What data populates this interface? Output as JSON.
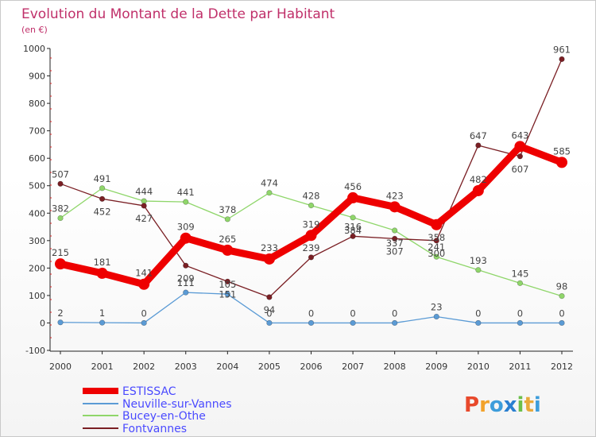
{
  "chart_data": {
    "type": "line",
    "title": "Evolution du Montant de la Dette par Habitant",
    "subtitle": "(en €)",
    "x": [
      "2000",
      "2001",
      "2002",
      "2003",
      "2004",
      "2005",
      "2006",
      "2007",
      "2008",
      "2009",
      "2010",
      "2011",
      "2012"
    ],
    "ylim": [
      -100,
      1000
    ],
    "yticks": [
      -100,
      0,
      100,
      200,
      300,
      400,
      500,
      600,
      700,
      800,
      900,
      1000
    ],
    "grid": false,
    "legend_position": "bottom-left",
    "series": [
      {
        "name": "ESTISSAC",
        "color": "#ee0000",
        "values": [
          215,
          181,
          141,
          309,
          265,
          233,
          319,
          456,
          423,
          358,
          482,
          643,
          585
        ]
      },
      {
        "name": "Neuville-sur-Vannes",
        "color": "#5b9bd5",
        "values": [
          2,
          1,
          0,
          111,
          105,
          0,
          0,
          0,
          0,
          23,
          0,
          0,
          0
        ]
      },
      {
        "name": "Bucey-en-Othe",
        "color": "#8fd66a",
        "values": [
          382,
          491,
          444,
          441,
          378,
          474,
          428,
          384,
          337,
          241,
          193,
          145,
          98
        ]
      },
      {
        "name": "Fontvannes",
        "color": "#7a1f24",
        "values": [
          507,
          452,
          427,
          209,
          151,
          94,
          239,
          316,
          307,
          300,
          647,
          607,
          961
        ]
      }
    ]
  },
  "branding": {
    "logo_letters": [
      "P",
      "r",
      "o",
      "x",
      "i",
      "t",
      "i"
    ]
  }
}
